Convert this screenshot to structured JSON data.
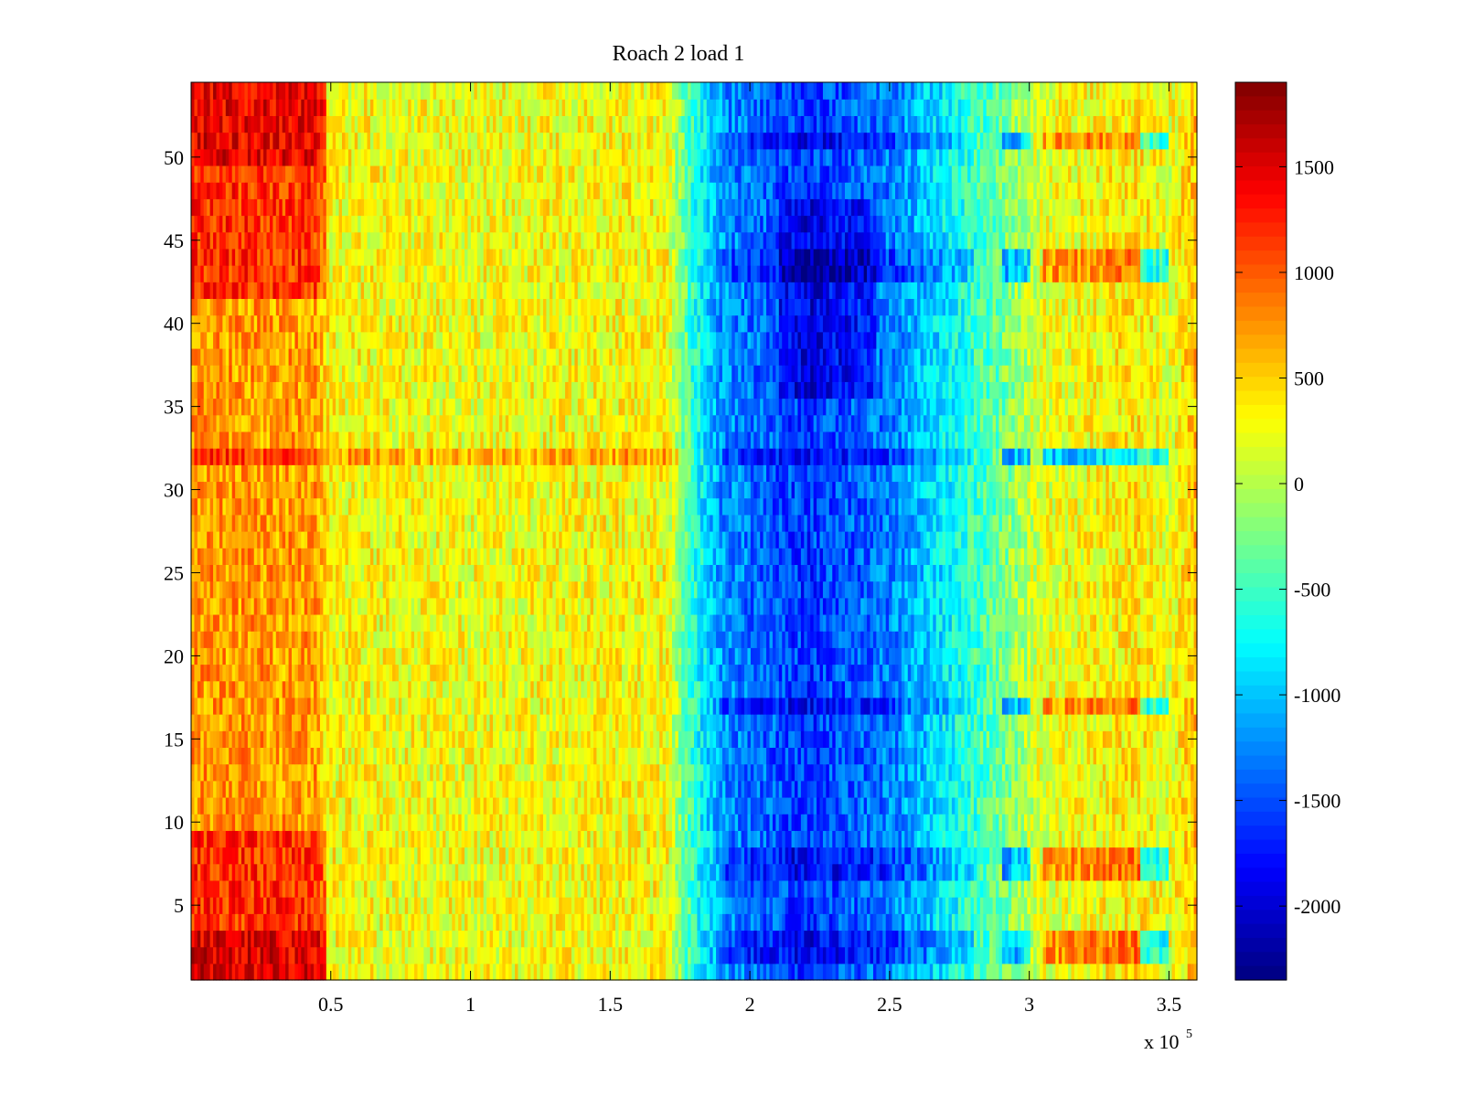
{
  "chart_data": {
    "type": "heatmap",
    "title": "Roach 2 load 1",
    "xlabel": "",
    "ylabel": "",
    "x_multiplier_label": "x 10",
    "x_multiplier_exponent": "5",
    "xlim": [
      0,
      3.6
    ],
    "ylim": [
      0.5,
      54.5
    ],
    "x_ticks": [
      0.5,
      1,
      1.5,
      2,
      2.5,
      3,
      3.5
    ],
    "x_tick_labels": [
      "0.5",
      "1",
      "1.5",
      "2",
      "2.5",
      "3",
      "3.5"
    ],
    "y_ticks": [
      5,
      10,
      15,
      20,
      25,
      30,
      35,
      40,
      45,
      50
    ],
    "y_tick_labels": [
      "5",
      "10",
      "15",
      "20",
      "25",
      "30",
      "35",
      "40",
      "45",
      "50"
    ],
    "colorbar": {
      "colormap": "jet",
      "range": [
        -2350,
        1900
      ],
      "ticks": [
        -2000,
        -1500,
        -1000,
        -500,
        0,
        500,
        1000,
        1500
      ],
      "tick_labels": [
        "-2000",
        "-1500",
        "-1000",
        "-500",
        "0",
        "500",
        "1000",
        "1500"
      ]
    },
    "rows": 54,
    "column_profile": [
      {
        "x": 0.0,
        "value": 750
      },
      {
        "x": 0.45,
        "value": 700
      },
      {
        "x": 0.5,
        "value": 300
      },
      {
        "x": 1.0,
        "value": 250
      },
      {
        "x": 1.5,
        "value": 300
      },
      {
        "x": 1.7,
        "value": 300
      },
      {
        "x": 1.8,
        "value": -600
      },
      {
        "x": 1.9,
        "value": -1200
      },
      {
        "x": 2.2,
        "value": -1600
      },
      {
        "x": 2.5,
        "value": -1300
      },
      {
        "x": 2.7,
        "value": -800
      },
      {
        "x": 2.9,
        "value": -300
      },
      {
        "x": 3.05,
        "value": 200
      },
      {
        "x": 3.4,
        "value": 400
      },
      {
        "x": 3.5,
        "value": 200
      },
      {
        "x": 3.6,
        "value": 600
      }
    ],
    "notable_rows": [
      2,
      3,
      7,
      8,
      17,
      32,
      43,
      44,
      51
    ],
    "grid": false,
    "legend": "colorbar-right"
  }
}
